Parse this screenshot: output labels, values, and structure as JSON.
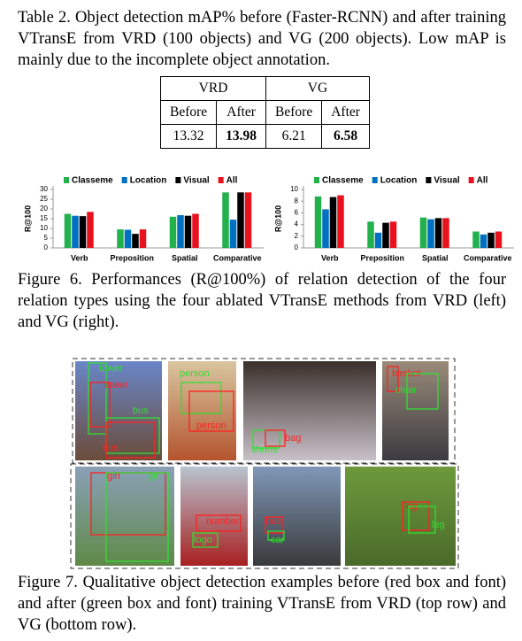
{
  "table_caption": "Table 2. Object detection mAP% before (Faster-RCNN) and after training VTransE from VRD (100 objects) and VG (200 objects). Low mAP is mainly due to the incomplete object annotation.",
  "table": {
    "groups": [
      "VRD",
      "VG"
    ],
    "columns": [
      "Before",
      "After",
      "Before",
      "After"
    ],
    "rows": [
      [
        13.32,
        13.98,
        6.21,
        6.58
      ]
    ]
  },
  "chart_data": [
    {
      "type": "bar",
      "y_label": "R@100",
      "legend": "top",
      "grid": false,
      "categories": [
        "Verb",
        "Preposition",
        "Spatial",
        "Comparative"
      ],
      "ylim": [
        0,
        30
      ],
      "yticks": [
        0,
        5,
        10,
        15,
        20,
        25,
        30
      ],
      "series": [
        {
          "name": "Classeme",
          "color": "#22b14c",
          "values": [
            17.5,
            9.5,
            16,
            28.5
          ]
        },
        {
          "name": "Location",
          "color": "#0070c0",
          "values": [
            16.5,
            9.3,
            16.8,
            14.5
          ]
        },
        {
          "name": "Visual",
          "color": "#000000",
          "values": [
            16.3,
            7.2,
            16.5,
            28.5
          ]
        },
        {
          "name": "All",
          "color": "#e8121e",
          "values": [
            18.5,
            9.5,
            17.5,
            28.5
          ]
        }
      ]
    },
    {
      "type": "bar",
      "y_label": "R@100",
      "legend": "top",
      "grid": false,
      "categories": [
        "Verb",
        "Preposition",
        "Spatial",
        "Comparative"
      ],
      "ylim": [
        0,
        10
      ],
      "yticks": [
        0,
        2,
        4,
        6,
        8,
        10
      ],
      "series": [
        {
          "name": "Classeme",
          "color": "#22b14c",
          "values": [
            8.8,
            4.5,
            5.2,
            2.8
          ]
        },
        {
          "name": "Location",
          "color": "#0070c0",
          "values": [
            6.6,
            2.6,
            4.9,
            2.3
          ]
        },
        {
          "name": "Visual",
          "color": "#000000",
          "values": [
            8.7,
            4.3,
            5.1,
            2.6
          ]
        },
        {
          "name": "All",
          "color": "#e8121e",
          "values": [
            9.0,
            4.5,
            5.1,
            2.8
          ]
        }
      ]
    }
  ],
  "figure6_caption": "Figure 6. Performances (R@100%) of relation detection of the four relation types using the four ablated VTransE methods from VRD (left) and VG (right).",
  "figure7": {
    "images": [
      {
        "labels": [
          {
            "text": "tower",
            "color": "#33dd33"
          },
          {
            "text": "tower",
            "color": "#ff2020"
          },
          {
            "text": "bus",
            "color": "#33dd33"
          },
          {
            "text": "bus",
            "color": "#ff2020"
          }
        ]
      },
      {
        "labels": [
          {
            "text": "person",
            "color": "#33dd33"
          },
          {
            "text": "person",
            "color": "#ff2020"
          }
        ]
      },
      {
        "labels": [
          {
            "text": "shorts",
            "color": "#33dd33"
          },
          {
            "text": "bag",
            "color": "#ff2020"
          }
        ]
      },
      {
        "labels": [
          {
            "text": "basket",
            "color": "#ff2020"
          },
          {
            "text": "chair",
            "color": "#33dd33"
          }
        ]
      },
      {
        "labels": [
          {
            "text": "girl",
            "color": "#ff2020"
          },
          {
            "text": "girl",
            "color": "#33dd33"
          }
        ]
      },
      {
        "labels": [
          {
            "text": "number",
            "color": "#ff2020"
          },
          {
            "text": "logo",
            "color": "#33dd33"
          }
        ]
      },
      {
        "labels": [
          {
            "text": "bus",
            "color": "#ff2020"
          },
          {
            "text": "car",
            "color": "#33dd33"
          }
        ]
      },
      {
        "labels": [
          {
            "text": "leg",
            "color": "#ff2020"
          },
          {
            "text": "leg",
            "color": "#33dd33"
          }
        ]
      }
    ]
  },
  "figure7_caption": "Figure 7. Qualitative object detection examples before (red box and font) and after (green box and font) training VTransE from VRD (top row) and VG (bottom row)."
}
